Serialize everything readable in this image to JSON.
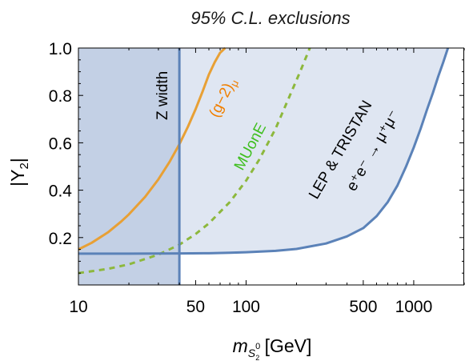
{
  "chart_data": {
    "type": "line",
    "title": "95% C.L. exclusions",
    "xlabel": {
      "base": "m",
      "sub": "S",
      "subsup": "0",
      "subsub": "2",
      "unit": " [GeV]"
    },
    "ylabel": "|Y",
    "ylabel_sub": "2",
    "ylabel_close": "|",
    "xscale": "log",
    "xlim": [
      10,
      2000
    ],
    "ylim": [
      0,
      1.0
    ],
    "xticks": [
      10,
      50,
      100,
      500,
      1000
    ],
    "xtick_labels": [
      "10",
      "50",
      "100",
      "500",
      "1000"
    ],
    "yticks": [
      0.2,
      0.4,
      0.6,
      0.8,
      1.0
    ],
    "ytick_labels": [
      "0.2",
      "0.4",
      "0.6",
      "0.8",
      "1.0"
    ],
    "colors": {
      "lep": "#5b82b8",
      "lep_fill": "#dfe6f2",
      "zwidth_fill": "#c3d0e5",
      "g2": "#e8a035",
      "muone": "#8db83d",
      "g2_text": "#f07f00",
      "muone_text": "#3fbf1f"
    },
    "series": [
      {
        "name": "LEP & TRISTAN",
        "style": "solid",
        "x": [
          10,
          20,
          40,
          60,
          80,
          100,
          150,
          200,
          300,
          400,
          500,
          600,
          700,
          800,
          900,
          1000,
          1100,
          1200,
          1300,
          1400,
          1500,
          1600
        ],
        "y": [
          0.132,
          0.132,
          0.133,
          0.134,
          0.136,
          0.138,
          0.144,
          0.152,
          0.175,
          0.205,
          0.24,
          0.29,
          0.35,
          0.42,
          0.5,
          0.58,
          0.66,
          0.74,
          0.81,
          0.88,
          0.94,
          1.0
        ]
      },
      {
        "name": "Z width",
        "style": "vertical",
        "x": [
          40,
          40
        ],
        "y": [
          0,
          1.0
        ]
      },
      {
        "name": "(g-2)μ",
        "style": "solid",
        "x": [
          10,
          12,
          15,
          18,
          20,
          25,
          30,
          35,
          40,
          45,
          50,
          55,
          60,
          65,
          70,
          75
        ],
        "y": [
          0.15,
          0.178,
          0.222,
          0.268,
          0.298,
          0.372,
          0.446,
          0.52,
          0.594,
          0.668,
          0.742,
          0.816,
          0.888,
          0.94,
          0.98,
          1.0
        ]
      },
      {
        "name": "MUonE",
        "style": "dashed",
        "x": [
          10,
          15,
          20,
          30,
          40,
          50,
          60,
          80,
          100,
          120,
          150,
          180,
          210,
          240
        ],
        "y": [
          0.05,
          0.068,
          0.087,
          0.128,
          0.17,
          0.215,
          0.26,
          0.35,
          0.44,
          0.53,
          0.66,
          0.79,
          0.9,
          1.0
        ]
      }
    ],
    "annotations": {
      "zwidth": "Z width",
      "g2_main": "(g−2)",
      "g2_sub": "μ",
      "muone": "MUonE",
      "lep": "LEP & TRISTAN",
      "process": "e⁺e⁻ → μ⁺μ⁻"
    }
  }
}
